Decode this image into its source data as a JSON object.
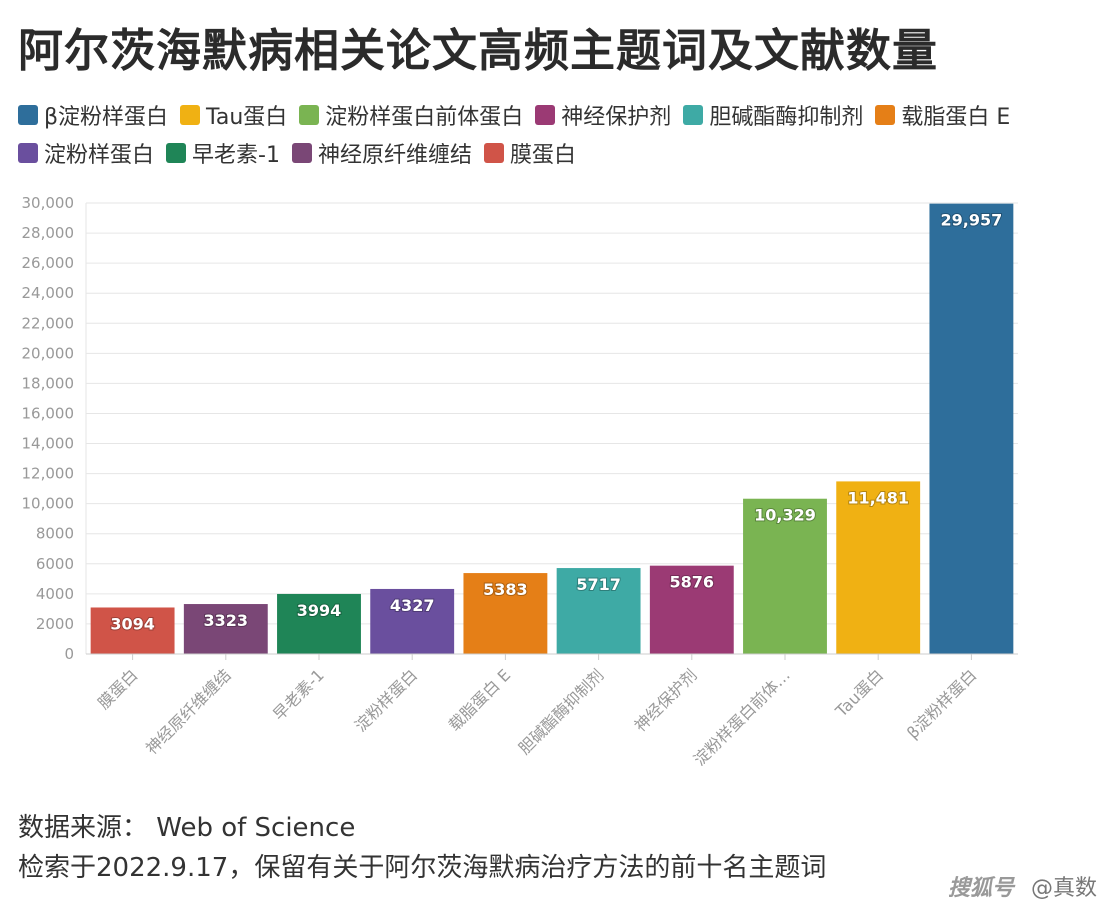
{
  "title": "阿尔茨海默病相关论文高频主题词及文献数量",
  "legend": [
    {
      "label": "β淀粉样蛋白",
      "color": "#2e6e9b"
    },
    {
      "label": "Tau蛋白",
      "color": "#f0b113"
    },
    {
      "label": "淀粉样蛋白前体蛋白",
      "color": "#7ab452"
    },
    {
      "label": "神经保护剂",
      "color": "#9b3a74"
    },
    {
      "label": "胆碱酯酶抑制剂",
      "color": "#3eaaa5"
    },
    {
      "label": "载脂蛋白 E",
      "color": "#e57f17"
    },
    {
      "label": "淀粉样蛋白",
      "color": "#6a4f9e"
    },
    {
      "label": "早老素-1",
      "color": "#1f8557"
    },
    {
      "label": "神经原纤维缠结",
      "color": "#7a4776"
    },
    {
      "label": "膜蛋白",
      "color": "#d05448"
    }
  ],
  "chart_data": {
    "type": "bar",
    "categories": [
      "膜蛋白",
      "神经原纤维缠结",
      "早老素-1",
      "淀粉样蛋白",
      "载脂蛋白 E",
      "胆碱酯酶抑制剂",
      "神经保护剂",
      "淀粉样蛋白前体…",
      "Tau蛋白",
      "β淀粉样蛋白"
    ],
    "values": [
      3094,
      3323,
      3994,
      4327,
      5383,
      5717,
      5876,
      10329,
      11481,
      29957
    ],
    "value_labels": [
      "3094",
      "3323",
      "3994",
      "4327",
      "5383",
      "5717",
      "5876",
      "10,329",
      "11,481",
      "29,957"
    ],
    "colors": [
      "#d05448",
      "#7a4776",
      "#1f8557",
      "#6a4f9e",
      "#e57f17",
      "#3eaaa5",
      "#9b3a74",
      "#7ab452",
      "#f0b113",
      "#2e6e9b"
    ],
    "ylim": [
      0,
      30000
    ],
    "yticks": [
      0,
      2000,
      4000,
      6000,
      8000,
      10000,
      12000,
      14000,
      16000,
      18000,
      20000,
      22000,
      24000,
      26000,
      28000,
      30000
    ],
    "ytick_labels": [
      "0",
      "2000",
      "4000",
      "6000",
      "8000",
      "10,000",
      "12,000",
      "14,000",
      "16,000",
      "18,000",
      "20,000",
      "22,000",
      "24,000",
      "26,000",
      "28,000",
      "30,000"
    ],
    "grid": true,
    "legend_position": "top",
    "xlabel": "",
    "ylabel": ""
  },
  "footer": {
    "source": "数据来源：  Web of Science",
    "note": "检索于2022.9.17，保留有关于阿尔茨海默病治疗方法的前十名主题词"
  },
  "watermark": {
    "platform": "搜狐号",
    "handle": "@真数"
  }
}
